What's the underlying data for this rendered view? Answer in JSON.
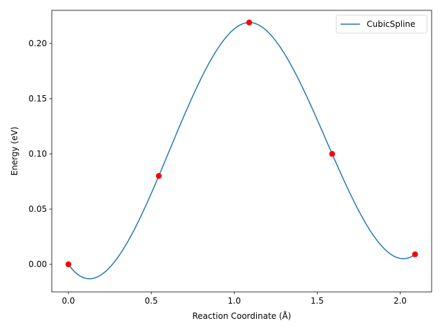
{
  "chart_data": {
    "type": "line",
    "title": "",
    "xlabel": "Reaction Coordinate (Å)",
    "ylabel": "Energy (eV)",
    "xlim": [
      -0.1,
      2.19
    ],
    "ylim": [
      -0.025,
      0.23
    ],
    "xticks": [
      0.0,
      0.5,
      1.0,
      1.5,
      2.0
    ],
    "xtick_labels": [
      "0.0",
      "0.5",
      "1.0",
      "1.5",
      "2.0"
    ],
    "yticks": [
      0.0,
      0.05,
      0.1,
      0.15,
      0.2
    ],
    "ytick_labels": [
      "0.00",
      "0.05",
      "0.10",
      "0.15",
      "0.20"
    ],
    "grid": false,
    "legend": {
      "position": "top-right",
      "entries": [
        "CubicSpline"
      ]
    },
    "series": [
      {
        "name": "CubicSpline",
        "kind": "line",
        "color": "#1f77b4",
        "interpolation": "cubic spline through points"
      },
      {
        "kind": "scatter",
        "color": "#ff0000",
        "x": [
          0.0,
          0.545,
          1.09,
          1.59,
          2.09
        ],
        "y": [
          0.0,
          0.08,
          0.219,
          0.1,
          0.009
        ]
      }
    ]
  }
}
